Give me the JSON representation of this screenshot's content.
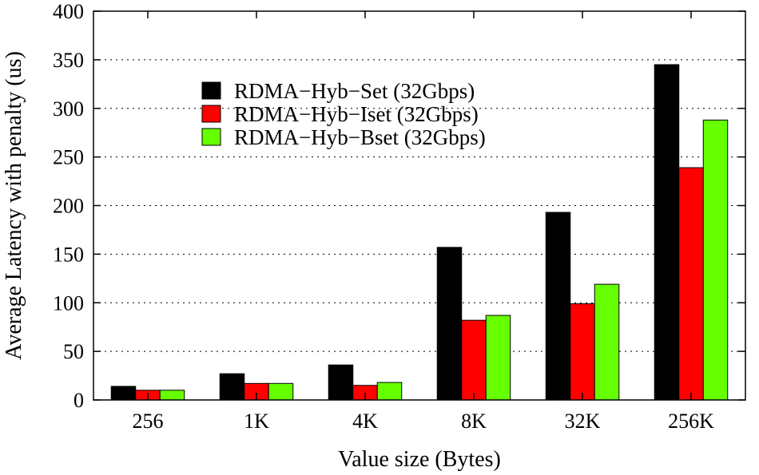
{
  "chart_data": {
    "type": "bar",
    "title": "",
    "xlabel": "Value size (Bytes)",
    "ylabel": "Average Latency with penalty (us)",
    "ylim": [
      0,
      400
    ],
    "yticks": [
      0,
      50,
      100,
      150,
      200,
      250,
      300,
      350,
      400
    ],
    "grid": "horizontal-dotted",
    "legend_position": "top-left",
    "categories": [
      "256",
      "1K",
      "4K",
      "8K",
      "32K",
      "256K"
    ],
    "series": [
      {
        "name": "RDMA−Hyb−Set (32Gbps)",
        "color": "#000000",
        "values": [
          14,
          27,
          36,
          157,
          193,
          345
        ]
      },
      {
        "name": "RDMA−Hyb−Iset (32Gbps)",
        "color": "#ff0000",
        "values": [
          10,
          17,
          15,
          82,
          99,
          239
        ]
      },
      {
        "name": "RDMA−Hyb−Bset (32Gbps)",
        "color": "#66ff00",
        "values": [
          10,
          17,
          18,
          87,
          119,
          288
        ]
      }
    ]
  }
}
